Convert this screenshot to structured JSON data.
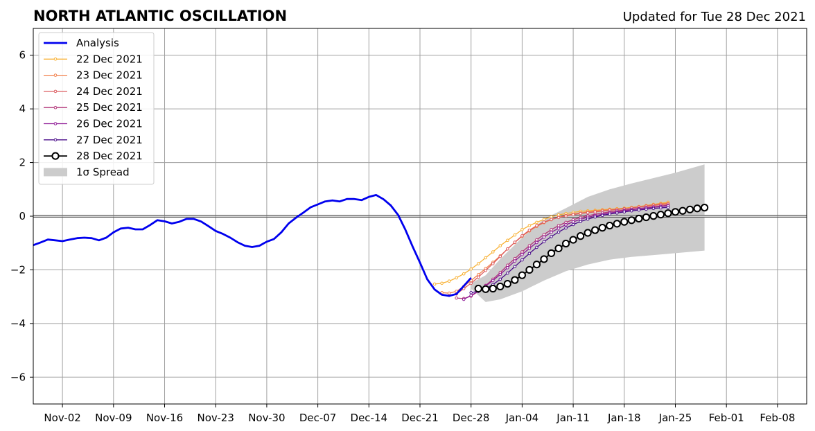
{
  "chart_data": {
    "type": "line",
    "title": "NORTH ATLANTIC OSCILLATION",
    "subtitle": "Updated for Tue 28 Dec 2021",
    "ylim": [
      -7,
      7
    ],
    "y_ticks": [
      -6,
      -4,
      -2,
      0,
      2,
      4,
      6
    ],
    "y_tick_labels": [
      "−6",
      "−4",
      "−2",
      "0",
      "2",
      "4",
      "6"
    ],
    "xlim": [
      "2021-10-29",
      "2022-02-12"
    ],
    "x_ticks": [
      "2021-11-02",
      "2021-11-09",
      "2021-11-16",
      "2021-11-23",
      "2021-11-30",
      "2021-12-07",
      "2021-12-14",
      "2021-12-21",
      "2021-12-28",
      "2022-01-04",
      "2022-01-11",
      "2022-01-18",
      "2022-01-25",
      "2022-02-01",
      "2022-02-08"
    ],
    "x_tick_labels": [
      "Nov-02",
      "Nov-09",
      "Nov-16",
      "Nov-23",
      "Nov-30",
      "Dec-07",
      "Dec-14",
      "Dec-21",
      "Dec-28",
      "Jan-04",
      "Jan-11",
      "Jan-18",
      "Jan-25",
      "Feb-01",
      "Feb-08"
    ],
    "grid": true,
    "legend_position": "upper-left",
    "legend": [
      "Analysis",
      "22 Dec 2021",
      "23 Dec 2021",
      "24 Dec 2021",
      "25 Dec 2021",
      "26 Dec 2021",
      "27 Dec 2021",
      "28 Dec 2021",
      "1σ Spread"
    ],
    "analysis": {
      "name": "Analysis",
      "color": "#0000ee",
      "start": "2021-10-29",
      "values": [
        -1.08,
        -0.98,
        -0.87,
        -0.9,
        -0.93,
        -0.87,
        -0.82,
        -0.8,
        -0.82,
        -0.9,
        -0.8,
        -0.6,
        -0.46,
        -0.43,
        -0.49,
        -0.49,
        -0.33,
        -0.15,
        -0.19,
        -0.27,
        -0.21,
        -0.1,
        -0.1,
        -0.2,
        -0.37,
        -0.55,
        -0.66,
        -0.8,
        -0.97,
        -1.1,
        -1.15,
        -1.1,
        -0.95,
        -0.85,
        -0.6,
        -0.27,
        -0.06,
        0.13,
        0.33,
        0.44,
        0.55,
        0.59,
        0.55,
        0.64,
        0.64,
        0.6,
        0.72,
        0.79,
        0.63,
        0.4,
        0.05,
        -0.5,
        -1.14,
        -1.73,
        -2.35,
        -2.73,
        -2.93,
        -2.97,
        -2.9,
        -2.6,
        -2.3
      ]
    },
    "spread": {
      "name": "1σ Spread",
      "color": "#cccccc",
      "x": [
        "2021-12-28",
        "2021-12-30",
        "2022-01-01",
        "2022-01-04",
        "2022-01-07",
        "2022-01-10",
        "2022-01-13",
        "2022-01-16",
        "2022-01-19",
        "2022-01-22",
        "2022-01-25",
        "2022-01-29"
      ],
      "lower": [
        -2.7,
        -3.2,
        -3.1,
        -2.8,
        -2.4,
        -2.05,
        -1.8,
        -1.62,
        -1.52,
        -1.45,
        -1.38,
        -1.28
      ],
      "upper": [
        -2.5,
        -2.2,
        -1.6,
        -0.8,
        -0.1,
        0.3,
        0.72,
        1.0,
        1.22,
        1.42,
        1.62,
        1.93
      ]
    },
    "series": [
      {
        "name": "22 Dec 2021",
        "color": "#f8b236",
        "start": "2021-12-23",
        "values": [
          -2.53,
          -2.5,
          -2.42,
          -2.3,
          -2.15,
          -1.97,
          -1.77,
          -1.55,
          -1.33,
          -1.1,
          -0.9,
          -0.7,
          -0.5,
          -0.35,
          -0.23,
          -0.12,
          -0.02,
          0.05,
          0.1,
          0.14,
          0.18,
          0.2,
          0.22,
          0.24,
          0.26,
          0.28,
          0.3,
          0.33,
          0.36,
          0.4,
          0.44,
          0.48,
          0.52
        ]
      },
      {
        "name": "23 Dec 2021",
        "color": "#f17f4a",
        "start": "2021-12-24",
        "values": [
          -2.85,
          -2.87,
          -2.8,
          -2.62,
          -2.4,
          -2.18,
          -1.95,
          -1.72,
          -1.48,
          -1.22,
          -0.98,
          -0.75,
          -0.55,
          -0.38,
          -0.24,
          -0.13,
          -0.04,
          0.03,
          0.08,
          0.12,
          0.16,
          0.19,
          0.22,
          0.24,
          0.26,
          0.28,
          0.31,
          0.35,
          0.39,
          0.43,
          0.46,
          0.48
        ]
      },
      {
        "name": "24 Dec 2021",
        "color": "#dc5b5f",
        "start": "2021-12-25",
        "values": [
          -2.95,
          -2.9,
          -2.7,
          -2.5,
          -2.27,
          -2.02,
          -1.77,
          -1.5,
          -1.22,
          -0.97,
          -0.73,
          -0.52,
          -0.35,
          -0.22,
          -0.12,
          -0.05,
          0.01,
          0.06,
          0.1,
          0.13,
          0.16,
          0.19,
          0.22,
          0.25,
          0.28,
          0.31,
          0.34,
          0.37,
          0.4,
          0.43,
          0.45
        ]
      },
      {
        "name": "25 Dec 2021",
        "color": "#b3367a",
        "start": "2021-12-26",
        "values": [
          -3.05,
          -3.07,
          -2.98,
          -2.8,
          -2.58,
          -2.35,
          -2.1,
          -1.83,
          -1.58,
          -1.33,
          -1.1,
          -0.88,
          -0.68,
          -0.5,
          -0.35,
          -0.23,
          -0.13,
          -0.05,
          0.02,
          0.07,
          0.12,
          0.16,
          0.2,
          0.23,
          0.26,
          0.29,
          0.32,
          0.35,
          0.38,
          0.41
        ]
      },
      {
        "name": "26 Dec 2021",
        "color": "#8e1a96",
        "start": "2021-12-27",
        "values": [
          -3.1,
          -2.95,
          -2.8,
          -2.6,
          -2.4,
          -2.17,
          -1.92,
          -1.67,
          -1.43,
          -1.2,
          -0.98,
          -0.78,
          -0.6,
          -0.45,
          -0.32,
          -0.21,
          -0.12,
          -0.04,
          0.02,
          0.07,
          0.12,
          0.16,
          0.2,
          0.24,
          0.27,
          0.3,
          0.33,
          0.36,
          0.39
        ]
      },
      {
        "name": "27 Dec 2021",
        "color": "#4a0c8a",
        "start": "2021-12-28",
        "values": [
          -2.85,
          -2.8,
          -2.7,
          -2.55,
          -2.35,
          -2.12,
          -1.88,
          -1.63,
          -1.39,
          -1.16,
          -0.95,
          -0.76,
          -0.59,
          -0.44,
          -0.31,
          -0.2,
          -0.11,
          -0.03,
          0.03,
          0.08,
          0.12,
          0.16,
          0.2,
          0.23,
          0.26,
          0.29,
          0.31,
          0.33
        ]
      },
      {
        "name": "28 Dec 2021",
        "color": "#000000",
        "start": "2021-12-29",
        "values": [
          -2.7,
          -2.72,
          -2.7,
          -2.62,
          -2.52,
          -2.38,
          -2.2,
          -2.0,
          -1.8,
          -1.6,
          -1.38,
          -1.2,
          -1.02,
          -0.88,
          -0.74,
          -0.62,
          -0.52,
          -0.43,
          -0.35,
          -0.28,
          -0.21,
          -0.15,
          -0.09,
          -0.04,
          0.01,
          0.06,
          0.11,
          0.16,
          0.2,
          0.25,
          0.29,
          0.32
        ]
      }
    ]
  }
}
